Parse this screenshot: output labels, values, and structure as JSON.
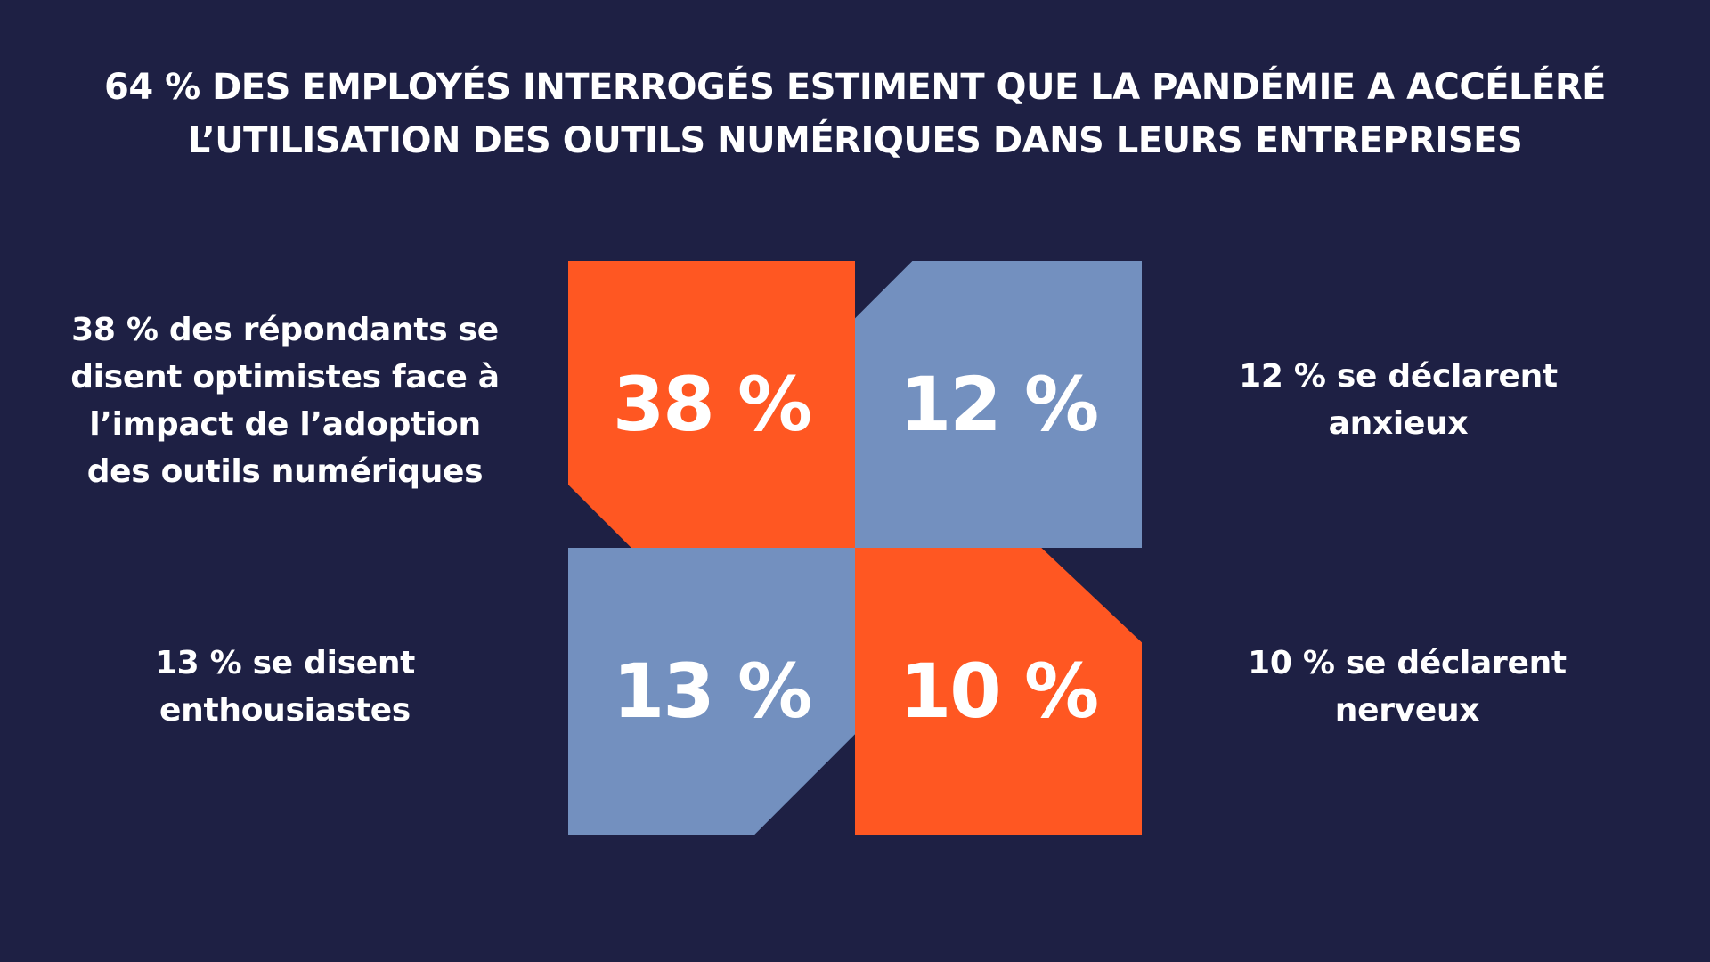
{
  "title": {
    "line1": "64 % DES EMPLOYÉS INTERROGÉS ESTIMENT QUE LA PANDÉMIE A ACCÉLÉRÉ",
    "line2": "L’UTILISATION DES OUTILS NUMÉRIQUES DANS LEURS ENTREPRISES"
  },
  "tiles": [
    {
      "value": "38 %",
      "color": "#FF5722"
    },
    {
      "value": "12 %",
      "color": "#7390BF"
    },
    {
      "value": "13 %",
      "color": "#7390BF"
    },
    {
      "value": "10 %",
      "color": "#FF5722"
    }
  ],
  "descriptions": {
    "top_left": [
      "38 % des répondants se",
      "disent optimistes face à",
      "l’impact de l’adoption",
      "des outils numériques"
    ],
    "top_right": [
      "12 % se déclarent",
      "anxieux"
    ],
    "bottom_left": [
      "13 % se disent",
      "enthousiastes"
    ],
    "bottom_right": [
      "10 % se déclarent",
      "nerveux"
    ]
  },
  "colors": {
    "background": "#1E2044",
    "accent_orange": "#FF5722",
    "accent_blue": "#7390BF",
    "text": "#FFFFFF"
  }
}
